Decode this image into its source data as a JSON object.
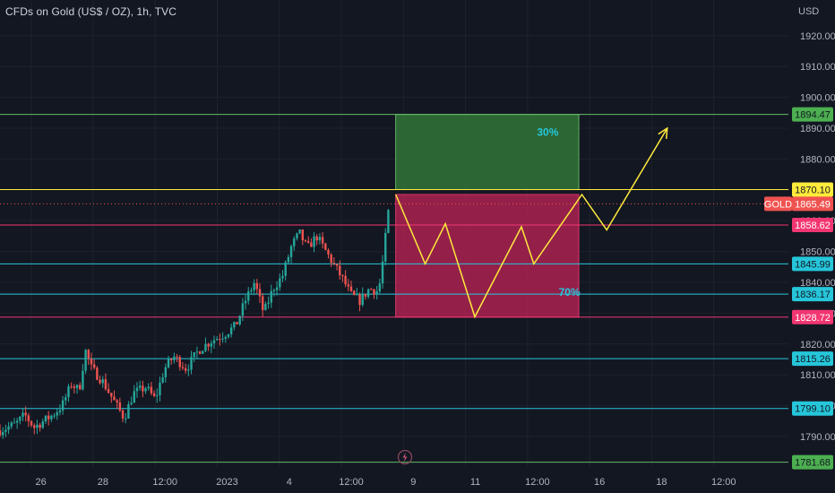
{
  "header": {
    "title": "CFDs on Gold (US$ / OZ), 1h, TVC",
    "currency": "USD"
  },
  "colors": {
    "background": "#131722",
    "grid": "#1e222d",
    "up": "#26a69a",
    "down": "#ef5350",
    "green_line": "#66bb6a",
    "yellow": "#ffeb3b",
    "pink": "#f23672",
    "cyan": "#26c6da",
    "green_box": "#2e6b35",
    "pink_box": "#a3224f",
    "percent_text": "#26c6da"
  },
  "chart_data": {
    "type": "candlestick",
    "symbol": "GOLD",
    "y_axis": {
      "range": [
        1780,
        1928
      ],
      "ticks": [
        1790,
        1800,
        1810,
        1820,
        1830,
        1840,
        1850,
        1860,
        1880,
        1890,
        1900,
        1910,
        1920
      ]
    },
    "x_axis": {
      "range": [
        0,
        25.25
      ],
      "ticks": [
        {
          "label": "26",
          "x": 1.0
        },
        {
          "label": "28",
          "x": 3.0
        },
        {
          "label": "12:00",
          "x": 5.0
        },
        {
          "label": "2023",
          "x": 7.0
        },
        {
          "label": "4",
          "x": 9.0
        },
        {
          "label": "12:00",
          "x": 11.0
        },
        {
          "label": "9",
          "x": 13.0
        },
        {
          "label": "11",
          "x": 15.0
        },
        {
          "label": "12:00",
          "x": 17.0
        },
        {
          "label": "16",
          "x": 19.0
        },
        {
          "label": "18",
          "x": 21.0
        },
        {
          "label": "12:00",
          "x": 23.0
        }
      ]
    },
    "price_path": [
      [
        0.0,
        1792
      ],
      [
        0.5,
        1794
      ],
      [
        0.8,
        1797
      ],
      [
        1.1,
        1793
      ],
      [
        1.7,
        1797
      ],
      [
        2.0,
        1800
      ],
      [
        2.3,
        1807
      ],
      [
        2.55,
        1805
      ],
      [
        2.75,
        1818
      ],
      [
        2.95,
        1812
      ],
      [
        3.3,
        1808
      ],
      [
        3.7,
        1801
      ],
      [
        4.0,
        1796
      ],
      [
        4.3,
        1804
      ],
      [
        4.7,
        1806
      ],
      [
        5.0,
        1802
      ],
      [
        5.3,
        1812
      ],
      [
        5.6,
        1816
      ],
      [
        6.0,
        1812
      ],
      [
        6.4,
        1818
      ],
      [
        6.8,
        1821
      ],
      [
        7.2,
        1823
      ],
      [
        7.6,
        1826
      ],
      [
        7.9,
        1834
      ],
      [
        8.2,
        1840
      ],
      [
        8.5,
        1830
      ],
      [
        8.8,
        1838
      ],
      [
        9.1,
        1842
      ],
      [
        9.4,
        1852
      ],
      [
        9.65,
        1856
      ],
      [
        9.9,
        1851
      ],
      [
        10.2,
        1855
      ],
      [
        10.5,
        1850
      ],
      [
        10.8,
        1845
      ],
      [
        11.05,
        1841
      ],
      [
        11.3,
        1836
      ],
      [
        11.6,
        1834
      ],
      [
        11.9,
        1838
      ],
      [
        12.2,
        1837
      ],
      [
        12.35,
        1848
      ],
      [
        12.5,
        1862
      ],
      [
        12.6,
        1866
      ]
    ],
    "horizontal_levels": [
      {
        "price": "1894.47",
        "kind": "green_line"
      },
      {
        "price": "1870.10",
        "kind": "yellow"
      },
      {
        "price": "1858.62",
        "kind": "pink"
      },
      {
        "price": "1845.99",
        "kind": "cyan"
      },
      {
        "price": "1836.17",
        "kind": "cyan"
      },
      {
        "price": "1828.72",
        "kind": "pink"
      },
      {
        "price": "1815.26",
        "kind": "cyan"
      },
      {
        "price": "1799.10",
        "kind": "cyan"
      },
      {
        "price": "1781.68",
        "kind": "green_line"
      }
    ],
    "current_price": {
      "symbol": "GOLD",
      "price": "1865.49"
    },
    "target_box": {
      "x_start": 12.75,
      "x_end": 18.65,
      "y_low": 1870.1,
      "y_high": 1894.47,
      "label": "30%"
    },
    "risk_box": {
      "x_start": 12.75,
      "x_end": 18.65,
      "y_low": 1828.72,
      "y_high": 1868.5,
      "label": "70%"
    },
    "projection": [
      [
        12.75,
        1868.5
      ],
      [
        13.7,
        1846
      ],
      [
        14.35,
        1859
      ],
      [
        15.3,
        1828.8
      ],
      [
        16.8,
        1858
      ],
      [
        17.2,
        1846
      ],
      [
        18.75,
        1868.5
      ],
      [
        19.55,
        1857
      ],
      [
        21.5,
        1890
      ]
    ]
  },
  "footer": {
    "lightning_icon": "lightning-icon"
  }
}
